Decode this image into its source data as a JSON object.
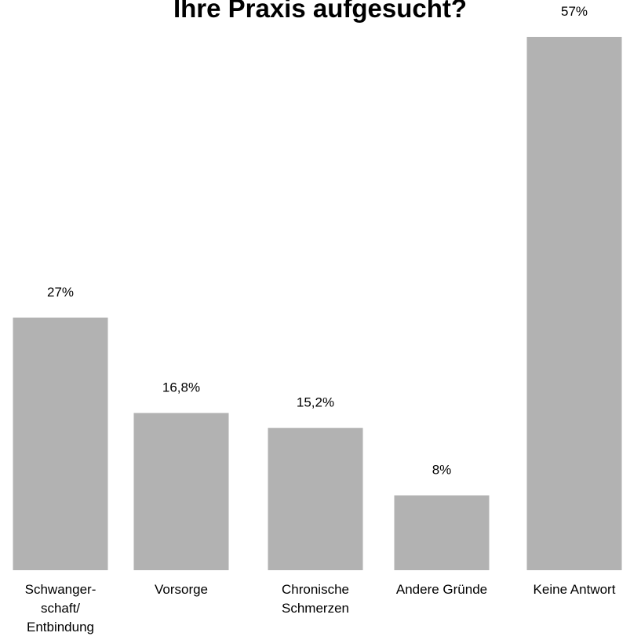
{
  "chart_data": {
    "type": "bar",
    "title": "Ihre Praxis aufgesucht?",
    "xlabel": "",
    "ylabel": "",
    "categories": [
      [
        "Schwanger-",
        "schaft/",
        "Entbindung"
      ],
      [
        "Vorsorge"
      ],
      [
        "Chronische",
        "Schmerzen"
      ],
      [
        "Andere Gründe"
      ],
      [
        "Keine Antwort"
      ]
    ],
    "values": [
      27,
      16.8,
      15.2,
      8,
      57
    ],
    "value_labels": [
      "27%",
      "16,8%",
      "15,2%",
      "8%",
      "57%"
    ],
    "ylim": [
      0,
      57
    ],
    "grid": false,
    "legend": "none",
    "bar_color": "#b2b2b2"
  }
}
